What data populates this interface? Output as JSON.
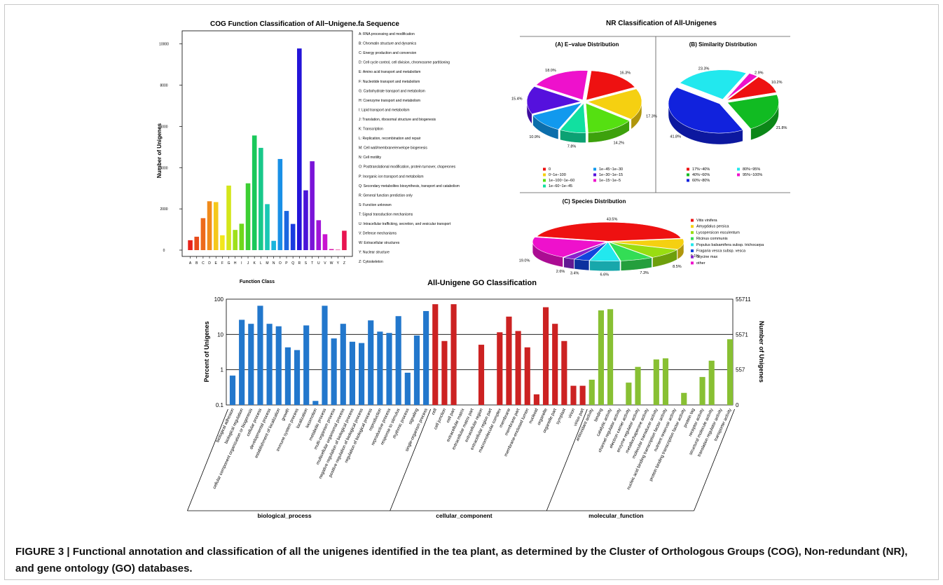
{
  "caption": {
    "label": "FIGURE 3 |",
    "text": " Functional annotation and classification of all the unigenes identified in the tea plant, as determined by the Cluster of Orthologous Groups (COG), Non-redundant (NR), and gene ontology (GO) databases."
  },
  "nr": {
    "title": "NR Classification of All-Unigenes"
  },
  "chart_data": [
    {
      "id": "cog",
      "type": "bar",
      "title": "COG Function Classification of All−Unigene.fa Sequence",
      "xlabel": "Function Class",
      "ylabel": "Number of Unigenes",
      "ylim": [
        0,
        10500
      ],
      "yticks": [
        0,
        2000,
        4000,
        6000,
        8000,
        10000
      ],
      "categories": [
        "A",
        "B",
        "C",
        "D",
        "E",
        "F",
        "G",
        "H",
        "I",
        "J",
        "K",
        "L",
        "M",
        "N",
        "O",
        "P",
        "Q",
        "R",
        "S",
        "T",
        "U",
        "V",
        "W",
        "Y",
        "Z"
      ],
      "values": [
        480,
        650,
        1550,
        2370,
        2330,
        720,
        3130,
        980,
        1280,
        3240,
        5560,
        4960,
        2230,
        450,
        4420,
        1900,
        1270,
        9780,
        2900,
        4310,
        1450,
        770,
        50,
        20,
        940
      ],
      "colors": [
        "#e8231b",
        "#e84b1b",
        "#ed6a1b",
        "#f08a1b",
        "#f5c81b",
        "#f2e61b",
        "#d4e61b",
        "#9fe01b",
        "#6ed81b",
        "#3ccf33",
        "#19c85a",
        "#19c88a",
        "#19c8b4",
        "#19b4dc",
        "#1990e6",
        "#1a66e0",
        "#1a3ce0",
        "#2414d8",
        "#4a14d8",
        "#7a14d8",
        "#a014d8",
        "#c814d0",
        "#d814a8",
        "#e0147c",
        "#e81450"
      ],
      "legend": [
        "A: RNA processing and modification",
        "B: Chromatin structure and dynamics",
        "C: Energy production and conversion",
        "D: Cell cycle control, cell division, chromosome partitioning",
        "E: Amino acid transport and metabolism",
        "F: Nucleotide transport and metabolism",
        "G: Carbohydrate transport and metabolism",
        "H: Coenzyme transport and metabolism",
        "I: Lipid transport and metabolism",
        "J: Translation, ribosomal structure and biogenesis",
        "K: Transcription",
        "L: Replication, recombination and repair",
        "M: Cell wall/membrane/envelope biogenesis",
        "N: Cell motility",
        "O: Posttranslational modification, protein turnover, chaperones",
        "P: Inorganic ion transport and metabolism",
        "Q: Secondary metabolites biosynthesis, transport and catabolism",
        "R: General function prediction only",
        "S: Function unknown",
        "T: Signal transduction mechanisms",
        "U: Intracellular trafficking, secretion, and vesicular transport",
        "V: Defense mechanisms",
        "W: Extracellular structures",
        "Y: Nuclear structure",
        "Z: Cytoskeleton"
      ]
    },
    {
      "id": "evalue",
      "type": "pie",
      "title": "(A) E−value Distribution",
      "labels": [
        "0",
        "0~1e−100",
        "1e−100~1e−60",
        "1e−60~1e−45",
        "1e−45~1e−30",
        "1e−30~1e−15",
        "1e−15~1e−5"
      ],
      "values": [
        16.3,
        17.3,
        14.2,
        7.8,
        10.9,
        15.4,
        18.0
      ],
      "slice_labels": [
        "16.3%",
        "17.3%",
        "14.2%",
        "7.8%",
        "10.9%",
        "15.4%",
        "18.0%"
      ],
      "colors": [
        "#ee1111",
        "#f5d011",
        "#55e011",
        "#11e0a0",
        "#1199ee",
        "#5511dd",
        "#ee11cc"
      ]
    },
    {
      "id": "similarity",
      "type": "pie",
      "title": "(B) Similarity Distribution",
      "labels": [
        "17%~40%",
        "40%~60%",
        "60%~80%",
        "80%~95%",
        "95%~100%"
      ],
      "values": [
        10.2,
        21.8,
        41.8,
        23.3,
        2.9
      ],
      "slice_labels": [
        "10.2%",
        "21.8%",
        "41.8%",
        "23.3%",
        "2.9%"
      ],
      "colors": [
        "#ee1111",
        "#11bb22",
        "#1122dd",
        "#22e8ee",
        "#ee11cc"
      ]
    },
    {
      "id": "species",
      "type": "pie",
      "title": "(C) Species Distribution",
      "labels": [
        "Vitis vinifera",
        "Amygdalus persica",
        "Lycopersicon esculentum",
        "Ricinus communis",
        "Populus balsamifera subsp. trichocarpa",
        "Fragaria vesca subsp. vesca",
        "Glycine max",
        "other"
      ],
      "values": [
        43.5,
        9.1,
        8.5,
        7.3,
        6.6,
        3.4,
        2.6,
        19.0
      ],
      "slice_labels": [
        "43.5%",
        "9.1%",
        "8.5%",
        "7.3%",
        "6.6%",
        "3.4%",
        "2.6%",
        "19.0%"
      ],
      "colors": [
        "#ee1111",
        "#f5d011",
        "#99dd11",
        "#33dd55",
        "#22e8ee",
        "#1144dd",
        "#8822cc",
        "#ee11cc"
      ]
    },
    {
      "id": "go",
      "type": "bar",
      "title": "All-Unigene GO Classification",
      "ylabel": "Percent of Unigenes",
      "y2label": "Number of Unigenes",
      "yscale": "log",
      "ylim": [
        0.1,
        100
      ],
      "yticks": [
        "100",
        "10",
        "1",
        "0.1"
      ],
      "y2ticks": [
        "55711",
        "5571",
        "557",
        "0"
      ],
      "groups": [
        {
          "name": "biological_process",
          "color": "#2277cc",
          "categories": [
            "biological adhesion",
            "biological regulation",
            "cellular component organization or biogenesis",
            "cellular process",
            "developmental process",
            "establishment of localization",
            "growth",
            "immune system process",
            "localization",
            "locomotion",
            "metabolic process",
            "multi-organism process",
            "multicellular organismal process",
            "negative regulation of biological process",
            "positive regulation of biological process",
            "regulation of biological process",
            "reproduction",
            "reproductive process",
            "response to stimulus",
            "rhythmic process",
            "signaling",
            "single-organism process"
          ],
          "values": [
            0.68,
            26,
            20,
            65,
            20,
            17,
            4.3,
            3.6,
            18,
            0.13,
            65,
            7.7,
            20,
            6.2,
            5.7,
            25,
            12,
            11,
            33,
            0.82,
            9.3,
            46
          ]
        },
        {
          "name": "cellular_component",
          "color": "#cc2222",
          "categories": [
            "cell",
            "cell junction",
            "cell part",
            "extracellular matrix",
            "extracellular matrix part",
            "extracellular region",
            "extracellular region part",
            "macromolecular complex",
            "membrane",
            "membrane part",
            "membrane-enclosed lumen",
            "nucleoid",
            "organelle",
            "organelle part",
            "symplast",
            "virion",
            "virion part"
          ],
          "values": [
            72,
            6.5,
            72,
            0,
            0,
            5.1,
            0,
            11.5,
            32,
            12.5,
            4.3,
            0.2,
            59,
            20,
            6.5,
            0.35,
            0.35
          ]
        },
        {
          "name": "molecular_function",
          "color": "#88c033",
          "categories": [
            "antioxidant activity",
            "binding",
            "catalytic activity",
            "channel regulator activity",
            "electron carrier activity",
            "enzyme regulator activity",
            "metallochaperone activity",
            "molecular transducer activity",
            "nucleic acid binding transcription factor activity",
            "nutrient reservoir activity",
            "protein binding transcription factor activity",
            "protein tag",
            "receptor activity",
            "structural molecule activity",
            "translation regulator activity",
            "transporter activity"
          ],
          "values": [
            0.52,
            48,
            52,
            0,
            0.43,
            1.2,
            0,
            1.95,
            2.1,
            0,
            0.22,
            0,
            0.62,
            1.8,
            0,
            7.3
          ]
        }
      ]
    }
  ]
}
